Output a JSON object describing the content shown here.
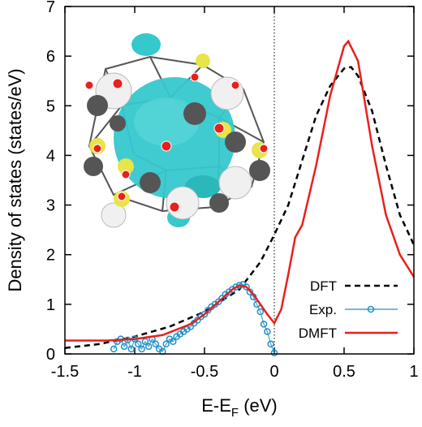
{
  "chart_data": {
    "type": "line",
    "x_label": "E-E",
    "x_label_sub": "F",
    "x_label_unit": " (eV)",
    "y_label": "Density of states (states/eV)",
    "xlim": [
      -1.5,
      1
    ],
    "ylim": [
      0,
      7
    ],
    "xticks": [
      -1.5,
      -1,
      -0.5,
      0,
      0.5,
      1
    ],
    "yticks": [
      0,
      1,
      2,
      3,
      4,
      5,
      6,
      7
    ],
    "reference_line_x": 0,
    "legend": "bottom-right",
    "series": [
      {
        "name": "DFT",
        "color": "#000000",
        "style": "dashed",
        "x": [
          -1.5,
          -1.25,
          -1.0,
          -0.75,
          -0.5,
          -0.25,
          -0.1,
          0,
          0.1,
          0.2,
          0.3,
          0.4,
          0.5,
          0.55,
          0.6,
          0.7,
          0.8,
          0.9,
          1.0
        ],
        "values": [
          0.12,
          0.2,
          0.35,
          0.55,
          0.85,
          1.3,
          1.85,
          2.4,
          3.0,
          3.9,
          4.8,
          5.4,
          5.75,
          5.78,
          5.6,
          4.9,
          3.8,
          2.8,
          2.2
        ]
      },
      {
        "name": "Exp.",
        "color": "#1f8fc8",
        "style": "markers",
        "x": [
          -1.15,
          -1.125,
          -1.1,
          -1.075,
          -1.05,
          -1.025,
          -1.0,
          -0.975,
          -0.95,
          -0.925,
          -0.9,
          -0.875,
          -0.85,
          -0.825,
          -0.8,
          -0.775,
          -0.75,
          -0.725,
          -0.7,
          -0.675,
          -0.65,
          -0.625,
          -0.6,
          -0.575,
          -0.55,
          -0.525,
          -0.5,
          -0.475,
          -0.45,
          -0.425,
          -0.4,
          -0.375,
          -0.35,
          -0.325,
          -0.3,
          -0.275,
          -0.25,
          -0.225,
          -0.2,
          -0.175,
          -0.15,
          -0.125,
          -0.1,
          -0.075,
          -0.05,
          -0.025,
          0
        ],
        "values": [
          0.1,
          0.25,
          0.3,
          0.15,
          0.28,
          0.1,
          0.3,
          0.2,
          0.1,
          0.25,
          0.15,
          0.3,
          0.2,
          0.1,
          0.05,
          0.2,
          0.3,
          0.25,
          0.35,
          0.4,
          0.45,
          0.5,
          0.55,
          0.62,
          0.68,
          0.75,
          0.8,
          0.88,
          0.95,
          1.0,
          1.05,
          1.12,
          1.2,
          1.25,
          1.3,
          1.35,
          1.38,
          1.4,
          1.35,
          1.25,
          1.15,
          1.0,
          0.85,
          0.6,
          0.45,
          0.2,
          0.02
        ]
      },
      {
        "name": "DMFT",
        "color": "#e8201c",
        "style": "solid",
        "x": [
          -1.5,
          -1.2,
          -1.0,
          -0.8,
          -0.6,
          -0.5,
          -0.4,
          -0.3,
          -0.25,
          -0.2,
          -0.15,
          -0.1,
          -0.05,
          0,
          0.05,
          0.1,
          0.15,
          0.2,
          0.3,
          0.4,
          0.5,
          0.53,
          0.6,
          0.7,
          0.8,
          0.9,
          1.0
        ],
        "values": [
          0.27,
          0.27,
          0.3,
          0.38,
          0.6,
          0.8,
          1.05,
          1.3,
          1.38,
          1.35,
          1.2,
          1.0,
          0.8,
          0.62,
          0.9,
          1.6,
          2.35,
          2.6,
          3.8,
          5.2,
          6.2,
          6.3,
          5.9,
          4.2,
          2.8,
          2.0,
          1.55
        ]
      }
    ]
  }
}
